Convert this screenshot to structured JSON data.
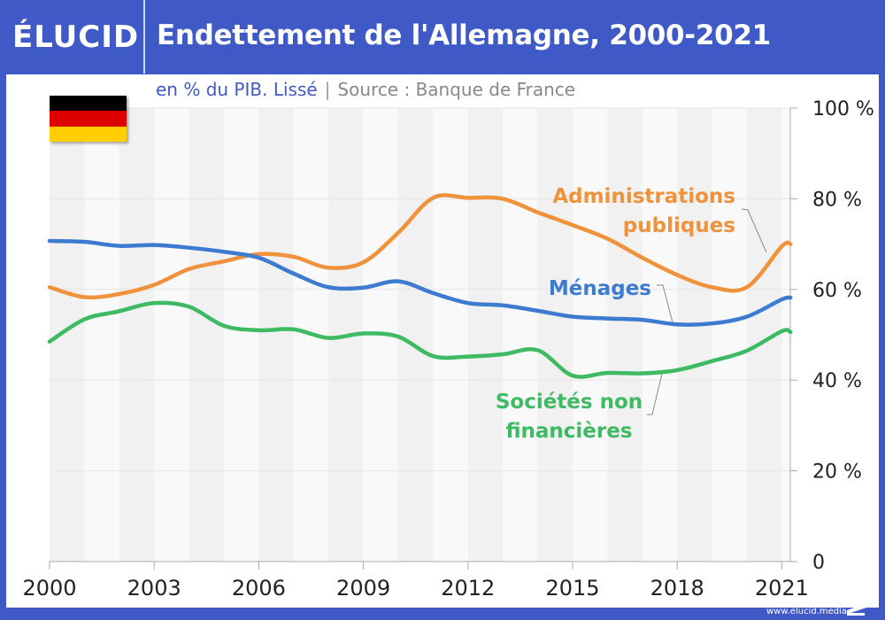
{
  "header": {
    "logo": "ÉLUCID",
    "title": "Endettement de l'Allemagne, 2000-2021"
  },
  "subtitle": {
    "unit": "en % du PIB. Lissé",
    "separator": "|",
    "source": "Source : Banque de France"
  },
  "flag": {
    "country": "Allemagne",
    "colors": [
      "#000000",
      "#dd0000",
      "#ffce00"
    ]
  },
  "footer": {
    "url": "www.elucid.media"
  },
  "colors": {
    "brand": "#3f5ac6",
    "menages": "#3d7bd0",
    "administrations": "#f0923c",
    "societes": "#3dba62"
  },
  "chart_data": {
    "type": "line",
    "title": "Endettement de l'Allemagne, 2000-2021",
    "subtitle": "en % du PIB. Lissé | Source : Banque de France",
    "xlabel": "",
    "ylabel": "",
    "x": [
      2000,
      2001,
      2002,
      2003,
      2004,
      2005,
      2006,
      2007,
      2008,
      2009,
      2010,
      2011,
      2012,
      2013,
      2014,
      2015,
      2016,
      2017,
      2018,
      2019,
      2020,
      2021,
      2021.25
    ],
    "xlim": [
      2000,
      2021.25
    ],
    "ylim": [
      0,
      100
    ],
    "x_ticks": [
      2000,
      2003,
      2006,
      2009,
      2012,
      2015,
      2018,
      2021
    ],
    "x_tick_labels": [
      "2000",
      "2003",
      "2006",
      "2009",
      "2012",
      "2015",
      "2018",
      "2021"
    ],
    "y_ticks": [
      0,
      20,
      40,
      60,
      80,
      100
    ],
    "y_tick_labels": [
      "0",
      "20 %",
      "40 %",
      "60 %",
      "80 %",
      "100 %"
    ],
    "y_axis_side": "right",
    "grid": true,
    "alternating_year_bands": true,
    "series": [
      {
        "name": "Administrations publiques",
        "label_lines": [
          "Administrations",
          "publiques"
        ],
        "color": "#f0923c",
        "values": [
          60.5,
          58.3,
          59.0,
          61.0,
          64.5,
          66.2,
          67.8,
          67.2,
          64.8,
          66.0,
          72.5,
          80.2,
          80.2,
          80.0,
          77.0,
          74.2,
          71.2,
          67.0,
          63.2,
          60.5,
          60.5,
          69.5,
          70.0
        ]
      },
      {
        "name": "Ménages",
        "label_lines": [
          "Ménages"
        ],
        "color": "#3d7bd0",
        "values": [
          70.7,
          70.5,
          69.6,
          69.8,
          69.2,
          68.3,
          67.0,
          63.5,
          60.5,
          60.4,
          61.8,
          59.2,
          57.0,
          56.5,
          55.3,
          54.0,
          53.6,
          53.3,
          52.3,
          52.5,
          54.0,
          57.8,
          58.2
        ]
      },
      {
        "name": "Sociétés non financières",
        "label_lines": [
          "Sociétés non",
          "financières"
        ],
        "color": "#3dba62",
        "values": [
          48.5,
          53.4,
          55.2,
          57.0,
          56.2,
          52.0,
          51.0,
          51.2,
          49.3,
          50.3,
          49.6,
          45.3,
          45.2,
          45.7,
          46.6,
          41.0,
          41.6,
          41.5,
          42.2,
          44.2,
          46.5,
          50.8,
          50.6
        ]
      }
    ]
  }
}
